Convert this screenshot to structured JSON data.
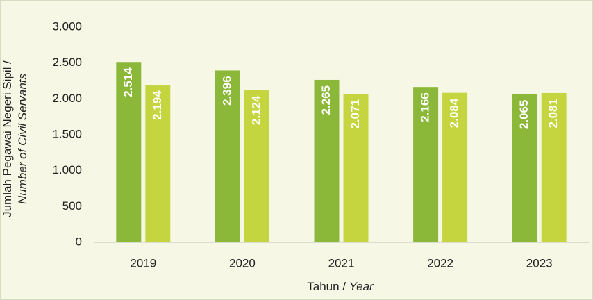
{
  "chart_data": {
    "type": "bar",
    "ylabel": [
      "Jumlah Pegawai Negeri Sipil /",
      "Number of Civil Servants"
    ],
    "xlabel": [
      "Tahun /",
      "Year"
    ],
    "categories": [
      "2019",
      "2020",
      "2021",
      "2022",
      "2023"
    ],
    "series": [
      {
        "color": "#8cb83a",
        "values": [
          2514,
          2396,
          2265,
          2166,
          2065
        ],
        "value_labels": [
          "2.514",
          "2.396",
          "2.265",
          "2.166",
          "2.065"
        ]
      },
      {
        "color": "#c5d53f",
        "values": [
          2194,
          2124,
          2071,
          2084,
          2081
        ],
        "value_labels": [
          "2.194",
          "2.124",
          "2.071",
          "2.084",
          "2.081"
        ]
      }
    ],
    "ylim": [
      0,
      3000
    ],
    "yticks": [
      0,
      500,
      {
        "value": 1000,
        "label": "1.000"
      },
      {
        "value": 1500,
        "label": "1.500"
      },
      {
        "value": 2000,
        "label": "2.000"
      },
      {
        "value": 2500,
        "label": "2.500"
      },
      {
        "value": 3000,
        "label": "3.000"
      }
    ],
    "grid": false
  }
}
